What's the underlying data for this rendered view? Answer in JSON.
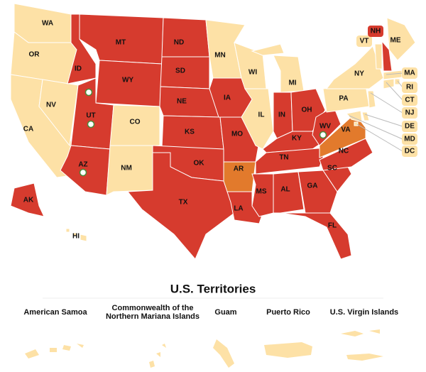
{
  "states": [
    {
      "label": "WA",
      "color": "#fde1a6"
    },
    {
      "label": "OR",
      "color": "#fde1a6"
    },
    {
      "label": "CA",
      "color": "#fde1a6"
    },
    {
      "label": "NV",
      "color": "#fde1a6"
    },
    {
      "label": "ID",
      "color": "#d63b2e"
    },
    {
      "label": "MT",
      "color": "#d63b2e"
    },
    {
      "label": "WY",
      "color": "#d63b2e"
    },
    {
      "label": "UT",
      "color": "#d63b2e"
    },
    {
      "label": "AZ",
      "color": "#d63b2e"
    },
    {
      "label": "CO",
      "color": "#fde1a6"
    },
    {
      "label": "NM",
      "color": "#fde1a6"
    },
    {
      "label": "ND",
      "color": "#d63b2e"
    },
    {
      "label": "SD",
      "color": "#d63b2e"
    },
    {
      "label": "NE",
      "color": "#d63b2e"
    },
    {
      "label": "KS",
      "color": "#d63b2e"
    },
    {
      "label": "OK",
      "color": "#d63b2e"
    },
    {
      "label": "TX",
      "color": "#d63b2e"
    },
    {
      "label": "MN",
      "color": "#fde1a6"
    },
    {
      "label": "IA",
      "color": "#d63b2e"
    },
    {
      "label": "MO",
      "color": "#d63b2e"
    },
    {
      "label": "AR",
      "color": "#e27a2c"
    },
    {
      "label": "LA",
      "color": "#d63b2e"
    },
    {
      "label": "WI",
      "color": "#fde1a6"
    },
    {
      "label": "IL",
      "color": "#fde1a6"
    },
    {
      "label": "MI",
      "color": "#fde1a6"
    },
    {
      "label": "IN",
      "color": "#d63b2e"
    },
    {
      "label": "OH",
      "color": "#d63b2e"
    },
    {
      "label": "KY",
      "color": "#d63b2e"
    },
    {
      "label": "TN",
      "color": "#d63b2e"
    },
    {
      "label": "MS",
      "color": "#d63b2e"
    },
    {
      "label": "AL",
      "color": "#d63b2e"
    },
    {
      "label": "GA",
      "color": "#d63b2e"
    },
    {
      "label": "FL",
      "color": "#d63b2e"
    },
    {
      "label": "SC",
      "color": "#d63b2e"
    },
    {
      "label": "NC",
      "color": "#d63b2e"
    },
    {
      "label": "VA",
      "color": "#e27a2c"
    },
    {
      "label": "WV",
      "color": "#d63b2e"
    },
    {
      "label": "PA",
      "color": "#fde1a6"
    },
    {
      "label": "NY",
      "color": "#fde1a6"
    },
    {
      "label": "ME",
      "color": "#fde1a6"
    },
    {
      "label": "VT",
      "color": "#fde1a6"
    },
    {
      "label": "NH",
      "color": "#d63b2e"
    },
    {
      "label": "MA",
      "color": "#fde1a6"
    },
    {
      "label": "RI",
      "color": "#fde1a6"
    },
    {
      "label": "CT",
      "color": "#fde1a6"
    },
    {
      "label": "NJ",
      "color": "#fde1a6"
    },
    {
      "label": "DE",
      "color": "#fde1a6"
    },
    {
      "label": "MD",
      "color": "#fde1a6"
    },
    {
      "label": "DC",
      "color": "#fde1a6"
    },
    {
      "label": "AK",
      "color": "#d63b2e"
    },
    {
      "label": "HI",
      "color": "#fde1a6"
    }
  ],
  "territories": {
    "title": "U.S. Territories",
    "items": [
      {
        "lines": [
          "American Samoa"
        ]
      },
      {
        "lines": [
          "Commonwealth of the",
          "Northern Mariana Islands"
        ]
      },
      {
        "lines": [
          "Guam"
        ]
      },
      {
        "lines": [
          "Puerto Rico"
        ]
      },
      {
        "lines": [
          "U.S. Virgin Islands"
        ]
      }
    ],
    "color": "#fde1a6"
  }
}
